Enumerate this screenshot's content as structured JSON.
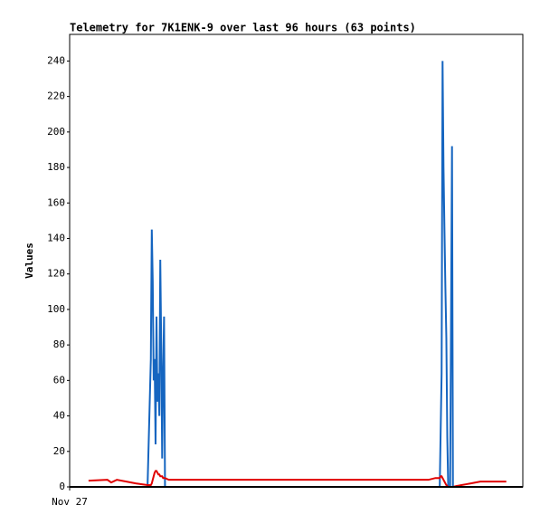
{
  "chart_data": {
    "type": "line",
    "title": "Telemetry for 7K1ENK-9 over last 96 hours (63 points)",
    "y_label": "Values",
    "xlim": [
      0,
      96
    ],
    "xticks": [
      {
        "value": 0,
        "label": "Nov 27"
      }
    ],
    "ylim": [
      0,
      255
    ],
    "yticks": [
      0,
      20,
      40,
      60,
      80,
      100,
      120,
      140,
      160,
      180,
      200,
      220,
      240
    ],
    "x": [
      4.0,
      8.0,
      8.8,
      10.0,
      12.0,
      14.0,
      16.5,
      17.2,
      17.4,
      17.6,
      17.8,
      18.0,
      18.2,
      18.4,
      18.6,
      18.8,
      19.0,
      19.2,
      19.4,
      19.6,
      19.8,
      20.0,
      20.2,
      21.0,
      24.0,
      26.0,
      30.0,
      34.0,
      38.0,
      42.0,
      46.0,
      50.0,
      54.0,
      58.0,
      62.0,
      66.0,
      70.0,
      74.0,
      76.0,
      77.5,
      78.4,
      78.6,
      78.8,
      79.0,
      79.2,
      79.4,
      79.6,
      79.8,
      80.0,
      80.2,
      80.6,
      81.0,
      81.2,
      82.0,
      83.0,
      84.0,
      85.0,
      86.0,
      87.0,
      88.0,
      89.0,
      90.0,
      92.5
    ],
    "series": [
      {
        "color": "#1565c0",
        "values": [
          0,
          0,
          0,
          0,
          0,
          0,
          0,
          72,
          145,
          116,
          60,
          72,
          24,
          96,
          48,
          64,
          40,
          128,
          80,
          16,
          64,
          96,
          0,
          0,
          0,
          0,
          0,
          0,
          0,
          0,
          0,
          0,
          0,
          0,
          0,
          0,
          0,
          0,
          0,
          0,
          0,
          32,
          64,
          240,
          180,
          145,
          112,
          84,
          28,
          0,
          0,
          192,
          0,
          0,
          0,
          0,
          0,
          0,
          0,
          0,
          0,
          0,
          0
        ]
      },
      {
        "color": "#e00000",
        "values": [
          3.5,
          4,
          2.5,
          4,
          3,
          2,
          1,
          1,
          2,
          4,
          6,
          8,
          9,
          9,
          8,
          7,
          7,
          6,
          6,
          6,
          5,
          5,
          5,
          4,
          4,
          4,
          4,
          4,
          4,
          4,
          4,
          4,
          4,
          4,
          4,
          4,
          4,
          4,
          4,
          5,
          5,
          6,
          6,
          5,
          4,
          3,
          2,
          1,
          0.5,
          0,
          0,
          0,
          0,
          0.5,
          1,
          1.5,
          2,
          2.5,
          3,
          3,
          3,
          3,
          3
        ]
      }
    ]
  }
}
